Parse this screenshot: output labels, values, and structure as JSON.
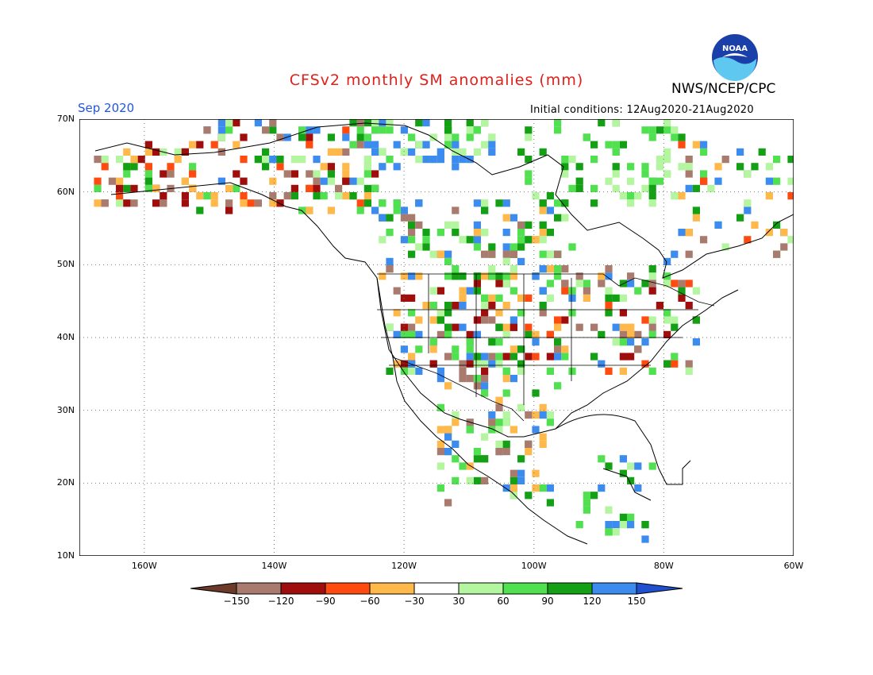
{
  "header": {
    "title": "CFSv2 monthly SM anomalies (mm)",
    "agency": "NWS/NCEP/CPC",
    "logo_text": "NOAA",
    "valid_month": "Sep 2020",
    "initial_conditions": "Initial conditions: 12Aug2020-21Aug2020"
  },
  "map": {
    "lat_range": [
      10,
      70
    ],
    "lon_range": [
      -170,
      -60
    ],
    "lat_labels": [
      "70N",
      "60N",
      "50N",
      "40N",
      "30N",
      "20N",
      "10N"
    ],
    "lon_labels": [
      "160W",
      "140W",
      "120W",
      "100W",
      "80W",
      "60W"
    ],
    "grid": "dotted"
  },
  "colorbar": {
    "labels": [
      "-150",
      "-120",
      "-90",
      "-60",
      "-30",
      "30",
      "60",
      "90",
      "120",
      "150"
    ],
    "colors": [
      "#6b3a28",
      "#a87b6e",
      "#a00d0d",
      "#ff4a10",
      "#ffb84a",
      "#ffffff",
      "#b4f5a0",
      "#50e050",
      "#14a014",
      "#3c8cf0",
      "#2050d0"
    ]
  }
}
